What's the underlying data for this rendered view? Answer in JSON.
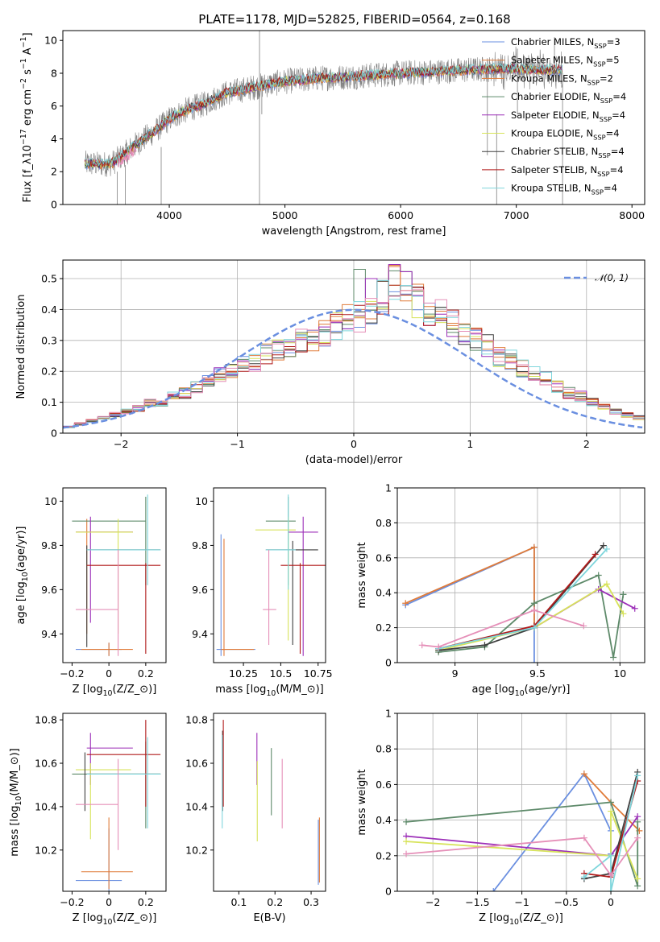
{
  "figure_title": "PLATE=1178, MJD=52825, FIBERID=0564, z=0.168",
  "colors": {
    "Chabrier MILES": "#6a8fe0",
    "Salpeter MILES": "#e07b39",
    "Kroupa MILES": "#e07b39",
    "Chabrier ELODIE": "#5e8a6a",
    "Salpeter ELODIE": "#9c2fb8",
    "Kroupa ELODIE": "#d7e35a",
    "Chabrier STELIB": "#3f3f3f",
    "Salpeter STELIB": "#b01a1a",
    "Kroupa STELIB": "#7fd6dc",
    "pink": "#e58fb8",
    "gaussian": "#6a8fe0",
    "data_spectrum": "#808080"
  },
  "chart_data": [
    {
      "id": "spectrum",
      "type": "line",
      "title": "PLATE=1178, MJD=52825, FIBERID=0564, z=0.168",
      "xlabel": "wavelength [Angstrom, rest frame]",
      "ylabel": "Flux [f_λ10^{-17} erg cm^{-2} s^{-1} A^{-1}]",
      "xlim": [
        3080,
        8110
      ],
      "ylim": [
        0,
        10.6
      ],
      "xticks": [
        4000,
        5000,
        6000,
        7000,
        8000
      ],
      "yticks": [
        0,
        2,
        4,
        6,
        8,
        10
      ],
      "grid": false,
      "legend_position": "top-right",
      "legend": [
        "Chabrier MILES, N_SSP=3",
        "Salpeter MILES, N_SSP=5",
        "Kroupa MILES, N_SSP=2",
        "Chabrier ELODIE, N_SSP=4",
        "Salpeter ELODIE, N_SSP=4",
        "Kroupa ELODIE, N_SSP=4",
        "Chabrier STELIB, N_SSP=4",
        "Salpeter STELIB, N_SSP=4",
        "Kroupa STELIB, N_SSP=4"
      ],
      "continuum": {
        "x": [
          3270,
          3400,
          3500,
          3600,
          3700,
          3800,
          3900,
          4000,
          4100,
          4200,
          4300,
          4400,
          4500,
          4700,
          5000,
          5300,
          5600,
          6000,
          6300,
          6600,
          6900,
          7200,
          7400
        ],
        "y": [
          2.5,
          2.45,
          2.5,
          3.0,
          3.6,
          4.1,
          4.6,
          5.2,
          5.6,
          5.9,
          6.1,
          6.5,
          6.8,
          7.1,
          7.5,
          7.7,
          7.8,
          8.0,
          8.1,
          8.2,
          8.3,
          8.2,
          8.2
        ]
      }
    },
    {
      "id": "residuals",
      "type": "step",
      "xlabel": "(data-model)/error",
      "ylabel": "Normed distribution",
      "xlim": [
        -2.5,
        2.5
      ],
      "ylim": [
        0,
        0.56
      ],
      "xticks": [
        -2,
        -1,
        0,
        1,
        2
      ],
      "yticks": [
        0.0,
        0.1,
        0.2,
        0.3,
        0.4,
        0.5
      ],
      "grid": true,
      "legend_position": "top-right",
      "legend": [
        "N(0,1)"
      ],
      "bin_edges_start": -2.5,
      "bin_width": 0.1,
      "histogram_example": [
        0.02,
        0.03,
        0.04,
        0.05,
        0.06,
        0.07,
        0.08,
        0.1,
        0.1,
        0.12,
        0.13,
        0.15,
        0.17,
        0.19,
        0.2,
        0.22,
        0.23,
        0.26,
        0.27,
        0.28,
        0.3,
        0.3,
        0.32,
        0.35,
        0.37,
        0.38,
        0.4,
        0.44,
        0.48,
        0.46,
        0.43,
        0.4,
        0.38,
        0.36,
        0.33,
        0.3,
        0.28,
        0.25,
        0.24,
        0.21,
        0.19,
        0.18,
        0.15,
        0.13,
        0.12,
        0.1,
        0.09,
        0.07,
        0.06,
        0.05
      ]
    },
    {
      "id": "z_vs_age",
      "type": "errorbar",
      "xlabel": "Z [log10(Z/Z_sun)]",
      "ylabel": "age [log10(age/yr)]",
      "xlim": [
        -0.25,
        0.31
      ],
      "ylim": [
        9.27,
        10.06
      ],
      "xticks": [
        -0.2,
        0.0,
        0.2
      ],
      "yticks": [
        9.4,
        9.6,
        9.8,
        10.0
      ],
      "grid": false,
      "points": [
        {
          "x": 0.0,
          "y": 9.33,
          "xe": [
            -0.18,
            0.07
          ],
          "ye": [
            9.3,
            9.36
          ],
          "c": "#6a8fe0"
        },
        {
          "x": 0.0,
          "y": 9.33,
          "xe": [
            -0.15,
            0.13
          ],
          "ye": [
            9.3,
            9.36
          ],
          "c": "#e07b39"
        },
        {
          "x": -0.12,
          "y": 9.86,
          "xe": [
            -0.18,
            0.13
          ],
          "ye": [
            9.4,
            9.92
          ],
          "c": "#e07b39"
        },
        {
          "x": 0.2,
          "y": 9.91,
          "xe": [
            -0.2,
            0.2
          ],
          "ye": [
            9.62,
            10.02
          ],
          "c": "#5e8a6a"
        },
        {
          "x": -0.1,
          "y": 9.86,
          "xe": [
            -0.18,
            0.13
          ],
          "ye": [
            9.45,
            9.93
          ],
          "c": "#9c2fb8"
        },
        {
          "x": 0.05,
          "y": 9.86,
          "xe": [
            -0.18,
            0.13
          ],
          "ye": [
            9.4,
            9.92
          ],
          "c": "#d7e35a"
        },
        {
          "x": -0.12,
          "y": 9.78,
          "xe": [
            -0.12,
            0.28
          ],
          "ye": [
            9.34,
            9.8
          ],
          "c": "#3f3f3f"
        },
        {
          "x": 0.2,
          "y": 9.71,
          "xe": [
            -0.12,
            0.28
          ],
          "ye": [
            9.31,
            9.72
          ],
          "c": "#b01a1a"
        },
        {
          "x": 0.21,
          "y": 9.78,
          "xe": [
            -0.12,
            0.28
          ],
          "ye": [
            9.62,
            10.03
          ],
          "c": "#7fd6dc"
        },
        {
          "x": 0.05,
          "y": 9.51,
          "xe": [
            -0.18,
            0.05
          ],
          "ye": [
            9.3,
            9.78
          ],
          "c": "#e58fb8"
        }
      ]
    },
    {
      "id": "mass_vs_age",
      "type": "errorbar",
      "xlabel": "mass [log10(M/M_sun)]",
      "ylabel": "",
      "xlim": [
        10.05,
        10.8
      ],
      "ylim": [
        9.27,
        10.06
      ],
      "xticks": [
        10.25,
        10.5,
        10.75
      ],
      "yticks": [
        9.4,
        9.6,
        9.8,
        10.0
      ],
      "grid": false,
      "points": [
        {
          "x": 10.1,
          "y": 9.33,
          "xe": [
            10.07,
            10.33
          ],
          "ye": [
            9.3,
            9.85
          ],
          "c": "#6a8fe0"
        },
        {
          "x": 10.12,
          "y": 9.33,
          "xe": [
            10.1,
            10.32
          ],
          "ye": [
            9.3,
            9.83
          ],
          "c": "#e07b39"
        },
        {
          "x": 10.55,
          "y": 9.91,
          "xe": [
            10.4,
            10.6
          ],
          "ye": [
            9.62,
            10.02
          ],
          "c": "#5e8a6a"
        },
        {
          "x": 10.65,
          "y": 9.86,
          "xe": [
            10.55,
            10.75
          ],
          "ye": [
            9.3,
            9.93
          ],
          "c": "#9c2fb8"
        },
        {
          "x": 10.55,
          "y": 9.87,
          "xe": [
            10.33,
            10.6
          ],
          "ye": [
            9.37,
            9.93
          ],
          "c": "#d7e35a"
        },
        {
          "x": 10.58,
          "y": 9.78,
          "xe": [
            10.4,
            10.75
          ],
          "ye": [
            9.35,
            9.82
          ],
          "c": "#3f3f3f"
        },
        {
          "x": 10.63,
          "y": 9.71,
          "xe": [
            10.5,
            10.8
          ],
          "ye": [
            9.31,
            9.72
          ],
          "c": "#b01a1a"
        },
        {
          "x": 10.55,
          "y": 9.78,
          "xe": [
            10.4,
            10.6
          ],
          "ye": [
            9.6,
            10.03
          ],
          "c": "#7fd6dc"
        },
        {
          "x": 10.42,
          "y": 9.51,
          "xe": [
            10.38,
            10.47
          ],
          "ye": [
            9.35,
            9.78
          ],
          "c": "#e58fb8"
        }
      ]
    },
    {
      "id": "age_weight",
      "type": "line",
      "xlabel": "age [log10(age/yr)]",
      "ylabel": "mass weight",
      "xlim": [
        8.65,
        10.15
      ],
      "ylim": [
        0.0,
        1.0
      ],
      "xticks": [
        9.0,
        9.5,
        10.0
      ],
      "yticks": [
        0.0,
        0.2,
        0.4,
        0.6,
        0.8,
        1.0
      ],
      "grid": true,
      "series": [
        {
          "x": [
            8.7,
            9.48,
            9.48
          ],
          "y": [
            0.33,
            0.66,
            0.0
          ],
          "c": "#6a8fe0"
        },
        {
          "x": [
            8.7,
            9.48,
            9.48
          ],
          "y": [
            0.34,
            0.66,
            0.21
          ],
          "c": "#e07b39"
        },
        {
          "x": [
            8.9,
            9.18,
            9.48,
            9.87,
            9.96,
            10.02,
            10.02
          ],
          "y": [
            0.06,
            0.09,
            0.34,
            0.5,
            0.03,
            0.39,
            0.39
          ],
          "c": "#5e8a6a"
        },
        {
          "x": [
            8.9,
            9.48,
            9.87,
            10.09
          ],
          "y": [
            0.08,
            0.2,
            0.42,
            0.31
          ],
          "c": "#9c2fb8"
        },
        {
          "x": [
            8.9,
            9.48,
            9.92,
            10.02
          ],
          "y": [
            0.07,
            0.2,
            0.45,
            0.28
          ],
          "c": "#d7e35a"
        },
        {
          "x": [
            8.9,
            9.18,
            9.48,
            9.9
          ],
          "y": [
            0.07,
            0.1,
            0.2,
            0.67
          ],
          "c": "#3f3f3f"
        },
        {
          "x": [
            8.9,
            9.48,
            9.85
          ],
          "y": [
            0.08,
            0.21,
            0.62
          ],
          "c": "#b01a1a"
        },
        {
          "x": [
            8.9,
            9.48,
            9.92
          ],
          "y": [
            0.08,
            0.2,
            0.65
          ],
          "c": "#7fd6dc"
        },
        {
          "x": [
            8.8,
            8.9,
            9.48,
            9.78
          ],
          "y": [
            0.1,
            0.09,
            0.3,
            0.21
          ],
          "c": "#e58fb8"
        }
      ]
    },
    {
      "id": "z_vs_mass",
      "type": "errorbar",
      "xlabel": "Z [log10(Z/Z_sun)]",
      "ylabel": "mass [log10(M/M_sun)]",
      "xlim": [
        -0.25,
        0.31
      ],
      "ylim": [
        10.01,
        10.83
      ],
      "xticks": [
        -0.2,
        0.0,
        0.2
      ],
      "yticks": [
        10.2,
        10.4,
        10.6,
        10.8
      ],
      "grid": false,
      "points": [
        {
          "x": 0.0,
          "y": 10.06,
          "xe": [
            -0.18,
            0.07
          ],
          "ye": [
            10.01,
            10.3
          ],
          "c": "#6a8fe0"
        },
        {
          "x": 0.0,
          "y": 10.1,
          "xe": [
            -0.15,
            0.13
          ],
          "ye": [
            10.02,
            10.35
          ],
          "c": "#e07b39"
        },
        {
          "x": 0.2,
          "y": 10.55,
          "xe": [
            -0.2,
            0.28
          ],
          "ye": [
            10.3,
            10.7
          ],
          "c": "#5e8a6a"
        },
        {
          "x": -0.1,
          "y": 10.67,
          "xe": [
            -0.12,
            0.13
          ],
          "ye": [
            10.5,
            10.74
          ],
          "c": "#9c2fb8"
        },
        {
          "x": -0.1,
          "y": 10.57,
          "xe": [
            -0.18,
            0.12
          ],
          "ye": [
            10.25,
            10.6
          ],
          "c": "#d7e35a"
        },
        {
          "x": -0.13,
          "y": 10.55,
          "xe": [
            -0.12,
            0.28
          ],
          "ye": [
            10.38,
            10.65
          ],
          "c": "#3f3f3f"
        },
        {
          "x": 0.2,
          "y": 10.64,
          "xe": [
            -0.12,
            0.28
          ],
          "ye": [
            10.4,
            10.8
          ],
          "c": "#b01a1a"
        },
        {
          "x": 0.21,
          "y": 10.55,
          "xe": [
            -0.12,
            0.28
          ],
          "ye": [
            10.3,
            10.72
          ],
          "c": "#7fd6dc"
        },
        {
          "x": 0.05,
          "y": 10.41,
          "xe": [
            -0.18,
            0.05
          ],
          "ye": [
            10.2,
            10.62
          ],
          "c": "#e58fb8"
        }
      ]
    },
    {
      "id": "ebv_vs_mass",
      "type": "errorbar",
      "xlabel": "E(B-V)",
      "ylabel": "",
      "xlim": [
        0.03,
        0.34
      ],
      "ylim": [
        10.01,
        10.83
      ],
      "xticks": [
        0.1,
        0.2,
        0.3
      ],
      "yticks": [
        10.2,
        10.4,
        10.6,
        10.8
      ],
      "grid": false,
      "points": [
        {
          "x": 0.055,
          "y": 10.55,
          "xe": [
            0.055,
            0.055
          ],
          "ye": [
            10.38,
            10.75
          ],
          "c": "#3f3f3f"
        },
        {
          "x": 0.057,
          "y": 10.64,
          "xe": [
            0.057,
            0.057
          ],
          "ye": [
            10.4,
            10.8
          ],
          "c": "#b01a1a"
        },
        {
          "x": 0.054,
          "y": 10.55,
          "xe": [
            0.054,
            0.054
          ],
          "ye": [
            10.3,
            10.73
          ],
          "c": "#7fd6dc"
        },
        {
          "x": 0.15,
          "y": 10.67,
          "xe": [
            0.15,
            0.15
          ],
          "ye": [
            10.5,
            10.74
          ],
          "c": "#9c2fb8"
        },
        {
          "x": 0.151,
          "y": 10.57,
          "xe": [
            0.151,
            0.151
          ],
          "ye": [
            10.24,
            10.61
          ],
          "c": "#d7e35a"
        },
        {
          "x": 0.19,
          "y": 10.55,
          "xe": [
            0.19,
            0.19
          ],
          "ye": [
            10.36,
            10.67
          ],
          "c": "#5e8a6a"
        },
        {
          "x": 0.22,
          "y": 10.41,
          "xe": [
            0.22,
            0.22
          ],
          "ye": [
            10.3,
            10.62
          ],
          "c": "#e58fb8"
        },
        {
          "x": 0.32,
          "y": 10.06,
          "xe": [
            0.32,
            0.32
          ],
          "ye": [
            10.04,
            10.34
          ],
          "c": "#6a8fe0"
        },
        {
          "x": 0.323,
          "y": 10.1,
          "xe": [
            0.323,
            0.323
          ],
          "ye": [
            10.05,
            10.35
          ],
          "c": "#e07b39"
        }
      ]
    },
    {
      "id": "z_weight",
      "type": "line",
      "xlabel": "Z [log10(Z/Z_sun)]",
      "ylabel": "mass weight",
      "xlim": [
        -2.4,
        0.38
      ],
      "ylim": [
        0.0,
        1.0
      ],
      "xticks": [
        -2.0,
        -1.5,
        -1.0,
        -0.5,
        0.0
      ],
      "yticks": [
        0.0,
        0.2,
        0.4,
        0.6,
        0.8,
        1.0
      ],
      "grid": true,
      "series": [
        {
          "x": [
            -1.32,
            -0.3,
            0.0,
            0.0
          ],
          "y": [
            0.0,
            0.66,
            0.34,
            0.21
          ],
          "c": "#6a8fe0"
        },
        {
          "x": [
            -0.3,
            0.0,
            0.32
          ],
          "y": [
            0.66,
            0.5,
            0.34
          ],
          "c": "#e07b39"
        },
        {
          "x": [
            -2.3,
            0.0,
            0.3,
            0.3
          ],
          "y": [
            0.39,
            0.5,
            0.03,
            0.39
          ],
          "c": "#5e8a6a"
        },
        {
          "x": [
            -2.3,
            0.0,
            0.3
          ],
          "y": [
            0.31,
            0.2,
            0.42
          ],
          "c": "#9c2fb8"
        },
        {
          "x": [
            -2.3,
            0.0,
            0.0,
            0.3
          ],
          "y": [
            0.28,
            0.2,
            0.45,
            0.07
          ],
          "c": "#d7e35a"
        },
        {
          "x": [
            -0.3,
            0.0,
            0.3
          ],
          "y": [
            0.07,
            0.1,
            0.67
          ],
          "c": "#3f3f3f"
        },
        {
          "x": [
            -0.3,
            0.0,
            0.3
          ],
          "y": [
            0.1,
            0.08,
            0.62
          ],
          "c": "#b01a1a"
        },
        {
          "x": [
            -0.3,
            0.0,
            0.0,
            0.3
          ],
          "y": [
            0.08,
            0.2,
            0.0,
            0.65
          ],
          "c": "#7fd6dc"
        },
        {
          "x": [
            -2.3,
            -0.3,
            0.0,
            0.3
          ],
          "y": [
            0.21,
            0.3,
            0.09,
            0.3
          ],
          "c": "#e58fb8"
        }
      ]
    }
  ]
}
